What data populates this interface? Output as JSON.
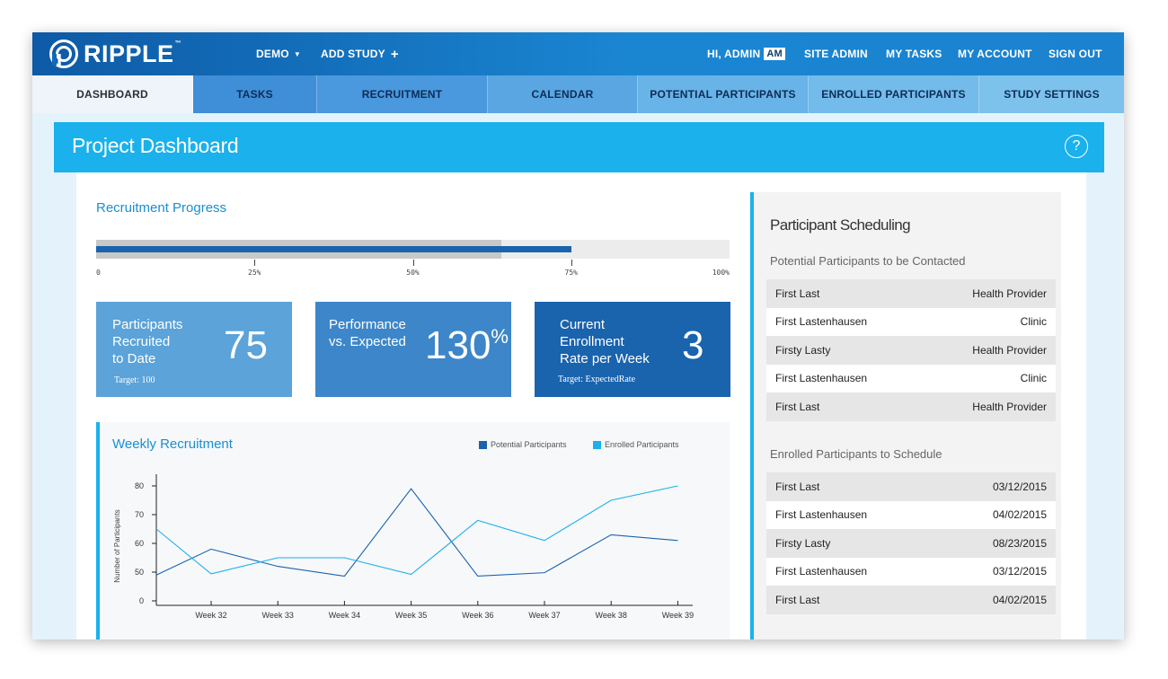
{
  "brand": {
    "name": "RIPPLE",
    "tm": "™"
  },
  "topnav": {
    "demo": "DEMO",
    "add_study": "ADD STUDY",
    "greeting": "HI, ADMIN",
    "initials": "AM",
    "site_admin": "SITE ADMIN",
    "my_tasks": "MY TASKS",
    "my_account": "MY ACCOUNT",
    "sign_out": "SIGN OUT"
  },
  "tabs": [
    {
      "label": "DASHBOARD",
      "active": true
    },
    {
      "label": "TASKS"
    },
    {
      "label": "RECRUITMENT"
    },
    {
      "label": "CALENDAR"
    },
    {
      "label": "POTENTIAL PARTICIPANTS"
    },
    {
      "label": "ENROLLED PARTICIPANTS"
    },
    {
      "label": "STUDY SETTINGS"
    }
  ],
  "header": {
    "title": "Project Dashboard",
    "help": "?"
  },
  "recruitment_progress": {
    "title": "Recruitment Progress",
    "actual_fraction": 0.75,
    "expected_fraction": 0.64,
    "ticks": [
      "0",
      "25%",
      "50%",
      "75%",
      "100%"
    ]
  },
  "stats": {
    "recruited": {
      "label_1": "Participants",
      "label_2": "Recruited",
      "label_3": "to Date",
      "value": "75",
      "target": "Target: 100"
    },
    "performance": {
      "label_1": "Performance",
      "label_2": "vs. Expected",
      "value": "130",
      "unit": "%"
    },
    "rate": {
      "label_1": "Current",
      "label_2": "Enrollment",
      "label_3": "Rate per Week",
      "value": "3",
      "target": "Target: ExpectedRate"
    }
  },
  "weekly": {
    "title": "Weekly Recruitment",
    "legend_potential": "Potential Participants",
    "legend_enrolled": "Enrolled Participants"
  },
  "chart_data": {
    "type": "line",
    "title": "Weekly Recruitment",
    "xlabel": "",
    "ylabel": "Number of Participants",
    "x": [
      "Week 32",
      "Week 33",
      "Week 34",
      "Week 35",
      "Week 36",
      "Week 37",
      "Week 38",
      "Week 39"
    ],
    "yticks": [
      "0",
      "50",
      "60",
      "70",
      "80"
    ],
    "series": [
      {
        "name": "Potential Participants",
        "color": "#1a63ad",
        "values": [
          58,
          52,
          43,
          79,
          43,
          49,
          63,
          61
        ]
      },
      {
        "name": "Enrolled Participants",
        "color": "#1ab1ec",
        "values": [
          47,
          55,
          55,
          46,
          68,
          61,
          75,
          80
        ]
      }
    ],
    "leading_points": {
      "potential": 45,
      "enrolled": 65
    },
    "legend_position": "top-right",
    "grid": false
  },
  "scheduling": {
    "title": "Participant Scheduling",
    "contacted_title": "Potential Participants to be Contacted",
    "contacted": [
      {
        "name": "First Last",
        "source": "Health Provider"
      },
      {
        "name": "First Lastenhausen",
        "source": "Clinic"
      },
      {
        "name": "Firsty Lasty",
        "source": "Health Provider"
      },
      {
        "name": "First Lastenhausen",
        "source": "Clinic"
      },
      {
        "name": "First Last",
        "source": "Health Provider"
      }
    ],
    "enrolled_title": "Enrolled Participants to Schedule",
    "enrolled": [
      {
        "name": "First Last",
        "date": "03/12/2015"
      },
      {
        "name": "First Lastenhausen",
        "date": "04/02/2015"
      },
      {
        "name": "Firsty Lasty",
        "date": "08/23/2015"
      },
      {
        "name": "First Lastenhausen",
        "date": "03/12/2015"
      },
      {
        "name": "First Last",
        "date": "04/02/2015"
      }
    ]
  },
  "colors": {
    "brand_dark": "#0e5aa6",
    "accent": "#1ab1ec",
    "stat_light": "#5ba3d9",
    "stat_mid": "#3d86c9",
    "stat_dark": "#1a63ad"
  }
}
